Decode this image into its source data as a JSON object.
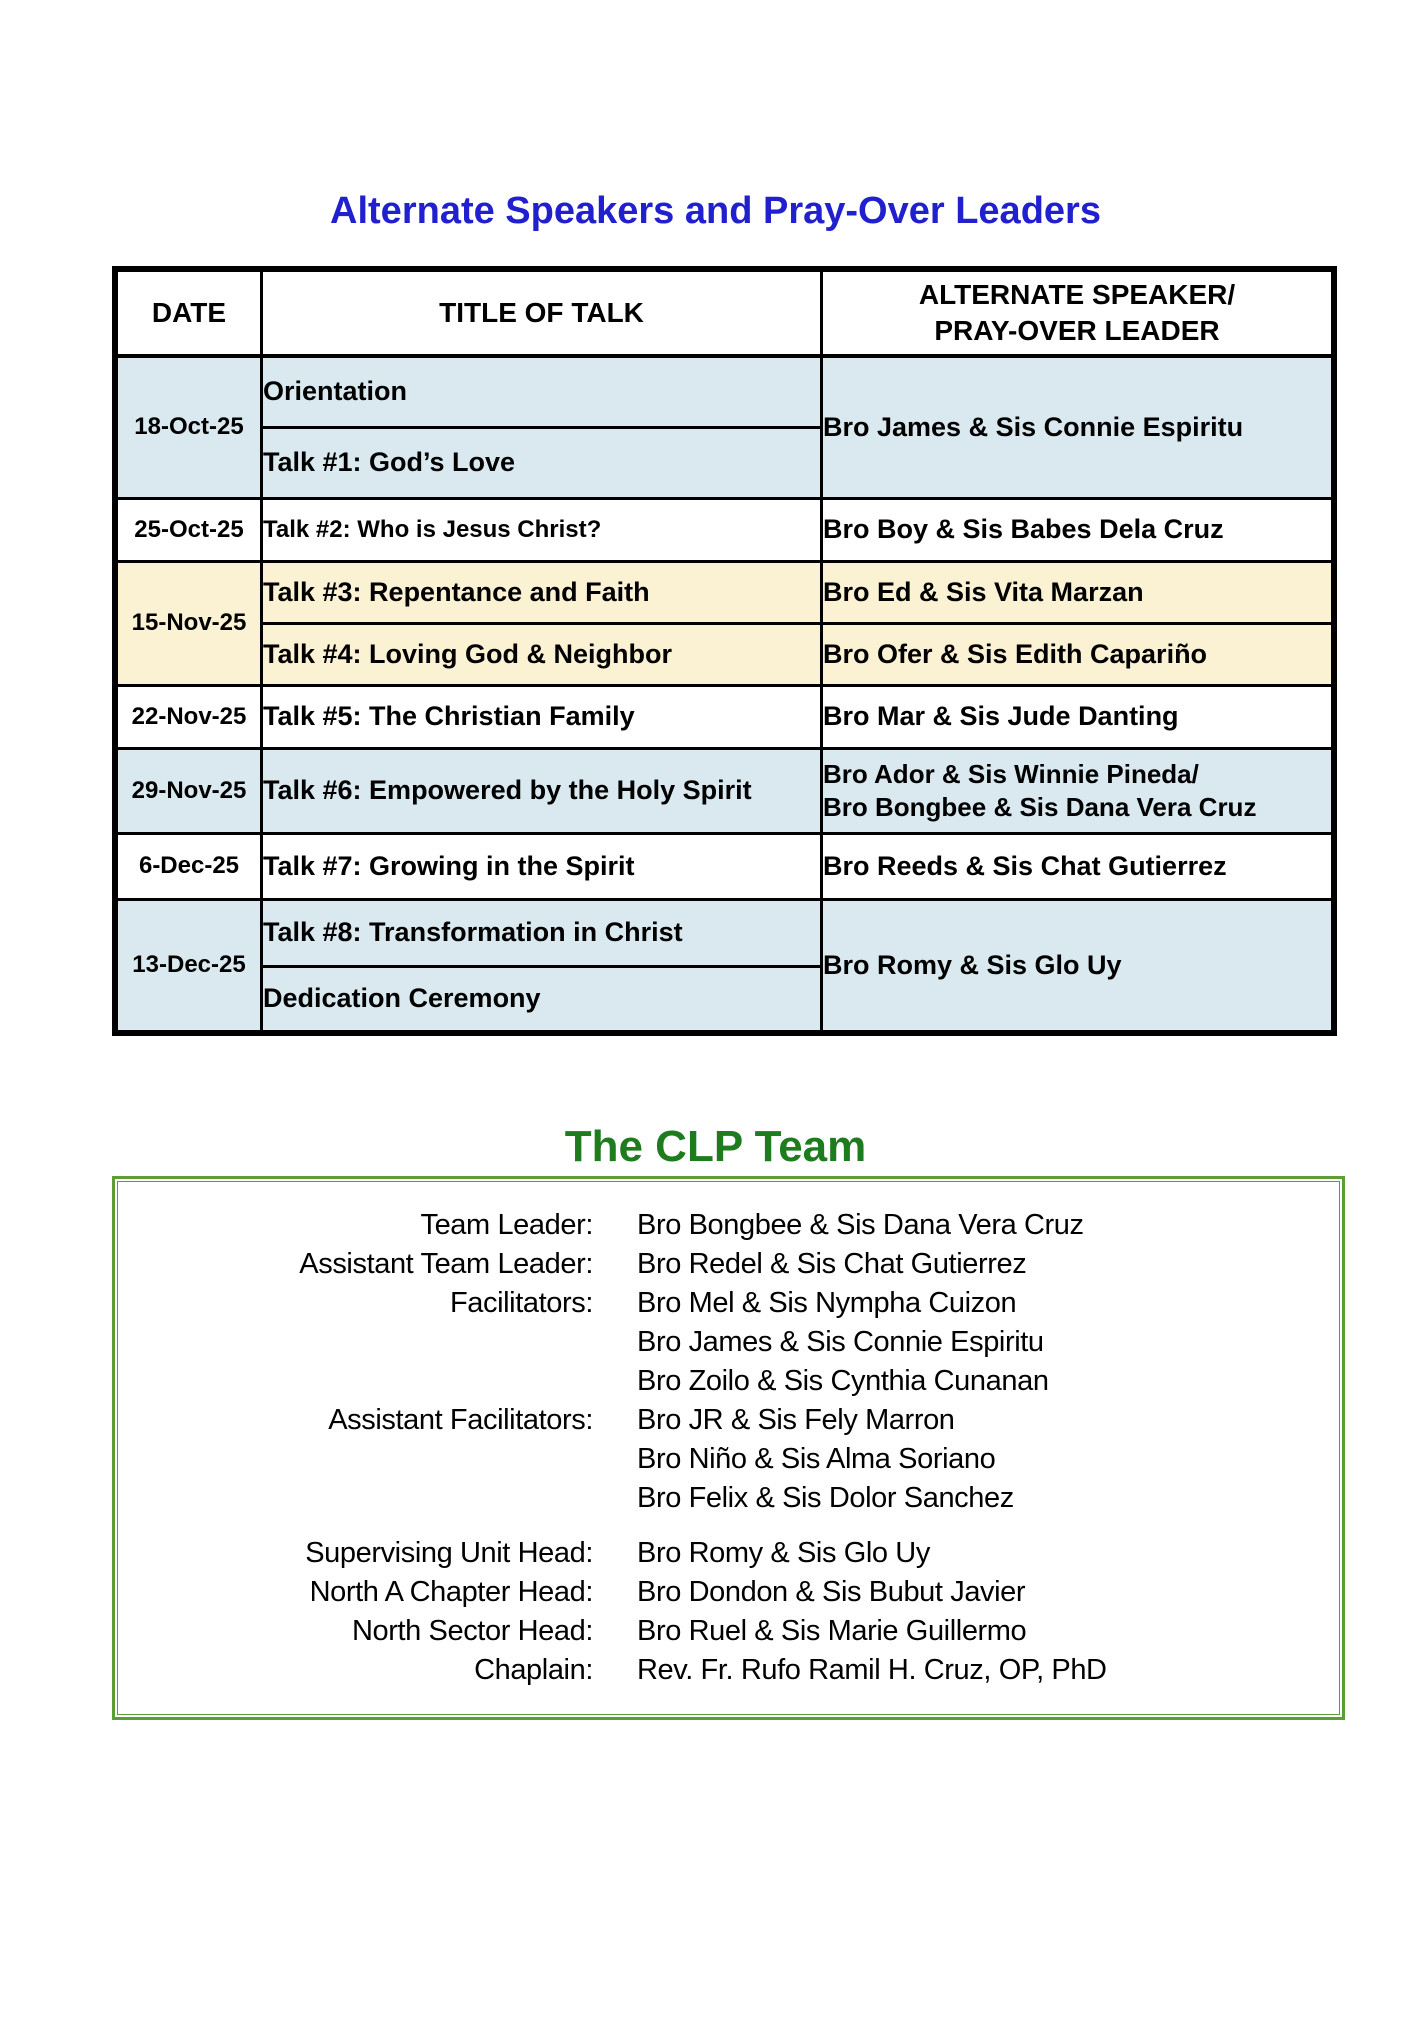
{
  "page": {
    "schedule_title": "Alternate Speakers and Pray-Over Leaders",
    "team_title": "The CLP Team"
  },
  "colors": {
    "title_blue": "#2020cf",
    "team_green": "#1e7c1e",
    "box_border_green": "#5a9e35",
    "row_blue": "#d9e9ef",
    "row_cream": "#fbf1d3",
    "border_black": "#000000"
  },
  "schedule_table": {
    "headers": {
      "date": "DATE",
      "title": "TITLE OF TALK",
      "speaker_line1": "ALTERNATE SPEAKER/",
      "speaker_line2": "PRAY-OVER LEADER"
    },
    "rows": [
      {
        "date": "18-Oct-25",
        "title_a": "Orientation",
        "title_b": "Talk #1: God’s Love",
        "speaker": "Bro James & Sis Connie Espiritu"
      },
      {
        "date": "25-Oct-25",
        "title": "Talk #2: Who is Jesus Christ?",
        "speaker": "Bro Boy & Sis Babes Dela Cruz"
      },
      {
        "date": "15-Nov-25",
        "title_a": "Talk #3: Repentance and Faith",
        "speaker_a": "Bro Ed & Sis Vita Marzan",
        "title_b": "Talk #4: Loving God & Neighbor",
        "speaker_b": "Bro Ofer & Sis Edith Capariño"
      },
      {
        "date": "22-Nov-25",
        "title": "Talk #5: The Christian Family",
        "speaker": "Bro Mar & Sis Jude Danting"
      },
      {
        "date": "29-Nov-25",
        "title": "Talk #6: Empowered by the Holy Spirit",
        "speaker_line1": "Bro Ador & Sis Winnie Pineda/",
        "speaker_line2": "Bro Bongbee & Sis Dana Vera Cruz"
      },
      {
        "date": "6-Dec-25",
        "title": "Talk #7: Growing in the Spirit",
        "speaker": "Bro Reeds & Sis Chat Gutierrez"
      },
      {
        "date": "13-Dec-25",
        "title_a": "Talk #8: Transformation in Christ",
        "title_b": "Dedication Ceremony",
        "speaker": "Bro Romy & Sis Glo Uy"
      }
    ]
  },
  "team": {
    "entries": [
      {
        "label": "Team Leader:",
        "value": "Bro Bongbee & Sis Dana Vera Cruz"
      },
      {
        "label": "Assistant Team Leader:",
        "value": "Bro Redel & Sis Chat Gutierrez"
      },
      {
        "label": "Facilitators:",
        "value": "Bro Mel & Sis Nympha Cuizon"
      },
      {
        "label": "",
        "value": "Bro James & Sis Connie Espiritu"
      },
      {
        "label": "",
        "value": "Bro Zoilo & Sis Cynthia Cunanan"
      },
      {
        "label": "Assistant Facilitators:",
        "value": "Bro JR & Sis Fely Marron"
      },
      {
        "label": "",
        "value": "Bro Niño & Sis Alma Soriano"
      },
      {
        "label": "",
        "value": "Bro Felix & Sis Dolor Sanchez"
      },
      {
        "label": "Supervising Unit Head:",
        "value": "Bro Romy & Sis Glo Uy"
      },
      {
        "label": "North A Chapter Head:",
        "value": "Bro Dondon & Sis Bubut Javier"
      },
      {
        "label": "North Sector Head:",
        "value": "Bro Ruel & Sis Marie Guillermo"
      },
      {
        "label": "Chaplain:",
        "value": "Rev. Fr. Rufo Ramil H. Cruz, OP, PhD"
      }
    ]
  }
}
